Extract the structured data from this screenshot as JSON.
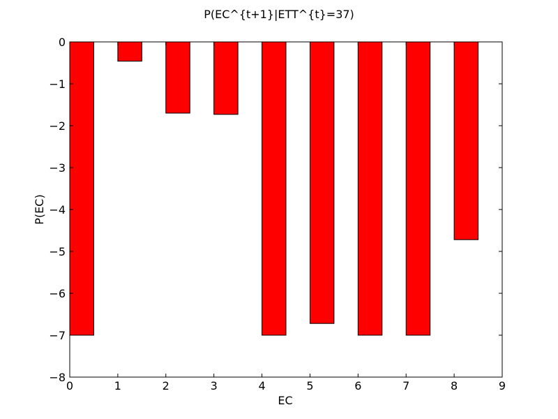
{
  "chart_data": {
    "type": "bar",
    "title": "P(EC^{t+1}|ETT^{t}=37)",
    "xlabel": "EC",
    "ylabel": "P(EC)",
    "x": [
      0,
      1,
      2,
      3,
      4,
      5,
      6,
      7,
      8
    ],
    "values": [
      -7.0,
      -0.46,
      -1.7,
      -1.73,
      -7.0,
      -6.72,
      -7.0,
      -7.0,
      -4.72
    ],
    "bar_width": 0.5,
    "xlim": [
      0,
      9
    ],
    "ylim": [
      -8,
      0
    ],
    "xticks": [
      0,
      1,
      2,
      3,
      4,
      5,
      6,
      7,
      8,
      9
    ],
    "xtick_labels": [
      "0",
      "1",
      "2",
      "3",
      "4",
      "5",
      "6",
      "7",
      "8",
      "9"
    ],
    "yticks": [
      0,
      -1,
      -2,
      -3,
      -4,
      -5,
      -6,
      -7,
      -8
    ],
    "ytick_labels": [
      "0",
      "−1",
      "−2",
      "−3",
      "−4",
      "−5",
      "−6",
      "−7",
      "−8"
    ],
    "grid": false,
    "legend": "none",
    "colors": {
      "bar_fill": "#ff0000",
      "bar_edge": "#000000"
    }
  }
}
